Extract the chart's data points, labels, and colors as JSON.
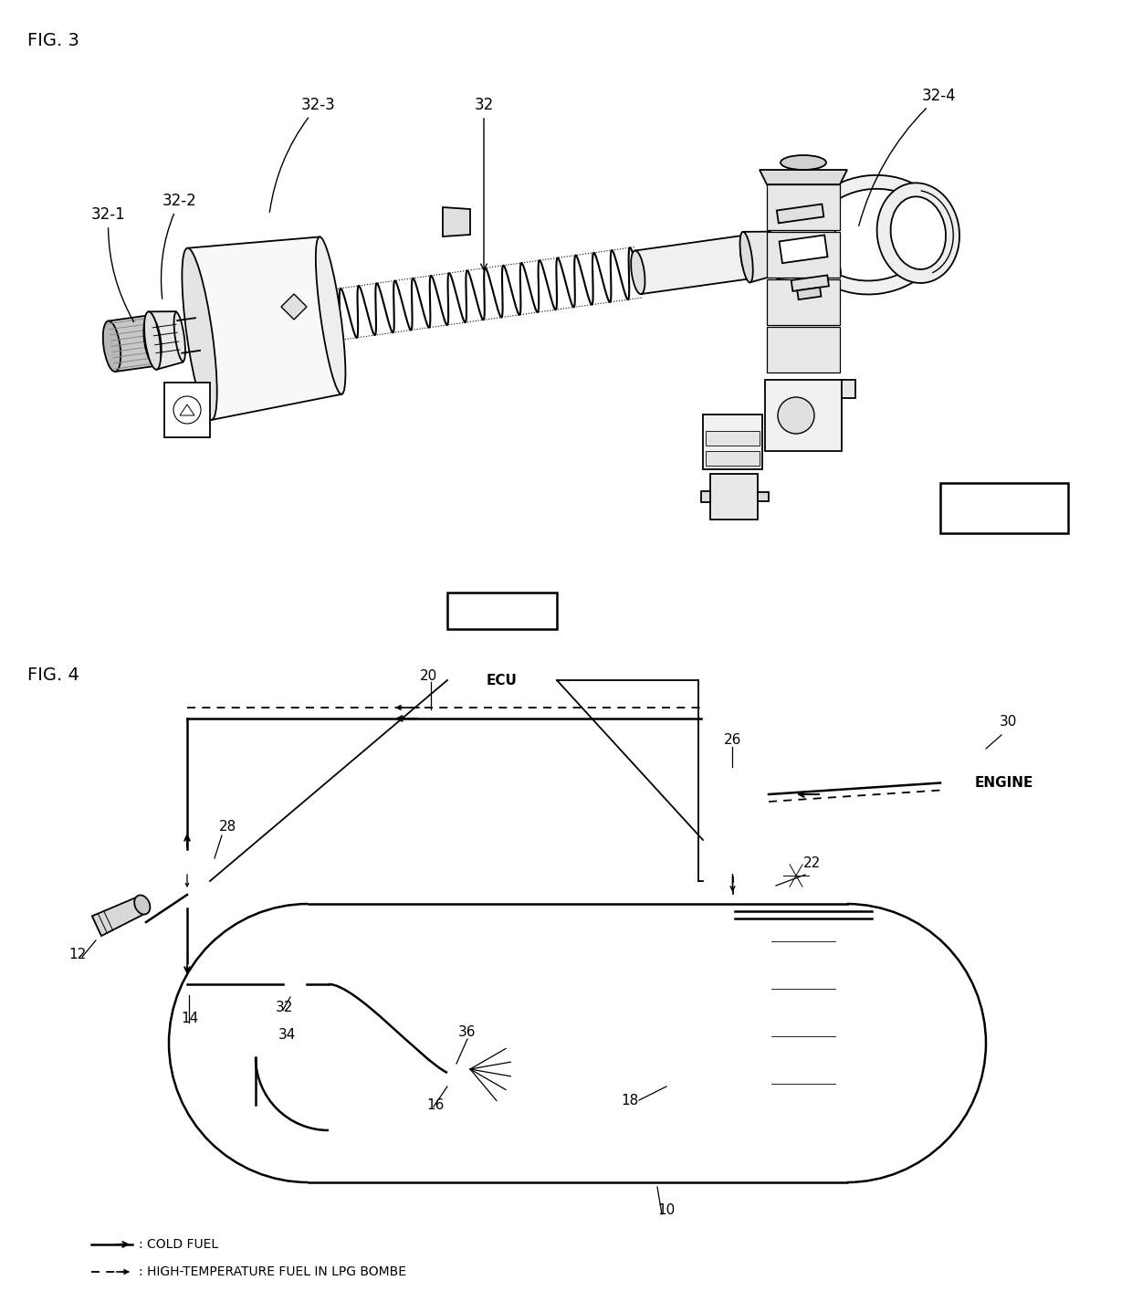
{
  "fig_width": 12.4,
  "fig_height": 14.14,
  "bg": "#ffffff",
  "lc": "#000000",
  "fig3_label": "FIG. 3",
  "fig4_label": "FIG. 4",
  "engine_label": "ENGINE",
  "ecu_label": "ECU",
  "legend_cold": ": COLD FUEL",
  "legend_hot": ": HIGH-TEMPERATURE FUEL IN LPG BOMBE"
}
